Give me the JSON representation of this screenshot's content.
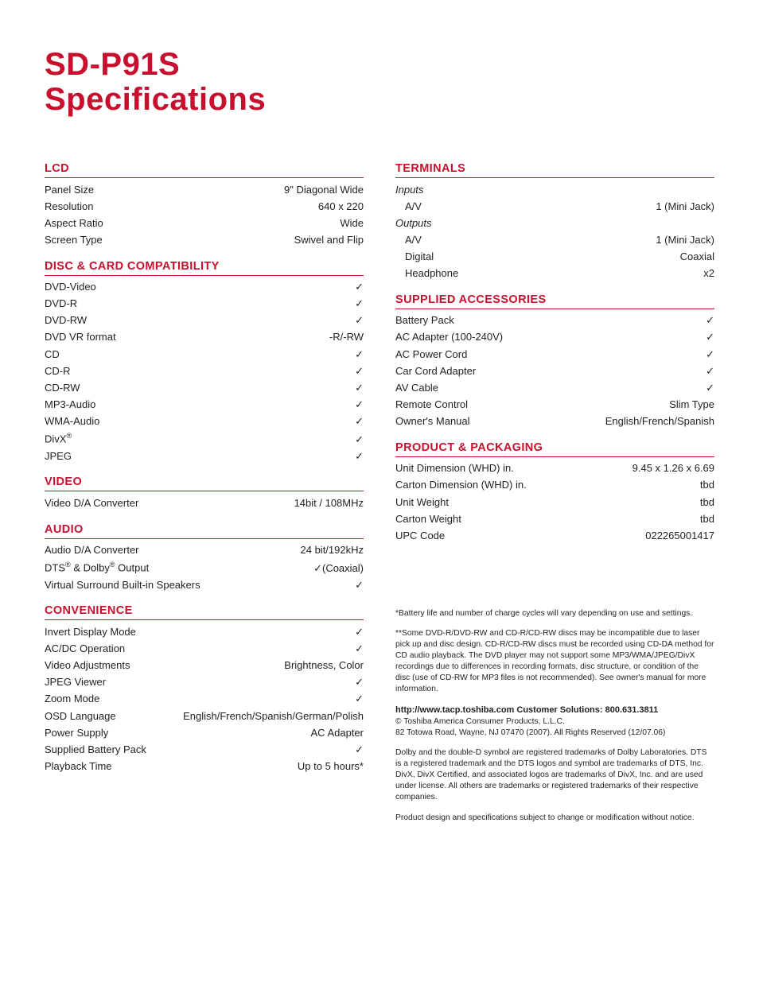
{
  "colors": {
    "accent": "#c8102e",
    "text": "#231f20",
    "background": "#ffffff"
  },
  "typography": {
    "title_fontsize_pt": 30,
    "section_head_fontsize_pt": 11,
    "body_fontsize_pt": 10,
    "footnote_fontsize_pt": 8,
    "title_weight": 700,
    "section_head_weight": 700,
    "font_family": "Futura / Century Gothic"
  },
  "title_line1": "SD-P91S",
  "title_line2": "Specifications",
  "check_glyph": "✓",
  "sections": {
    "lcd": {
      "heading": "LCD",
      "rows": [
        {
          "label": "Panel Size",
          "value": "9\" Diagonal Wide"
        },
        {
          "label": "Resolution",
          "value": "640 x 220"
        },
        {
          "label": "Aspect Ratio",
          "value": "Wide"
        },
        {
          "label": "Screen Type",
          "value": "Swivel and Flip"
        }
      ]
    },
    "disc": {
      "heading": "DISC & CARD COMPATIBILITY",
      "rows": [
        {
          "label": "DVD-Video",
          "value": "✓"
        },
        {
          "label": "DVD-R",
          "value": "✓"
        },
        {
          "label": "DVD-RW",
          "value": "✓"
        },
        {
          "label": "DVD VR format",
          "value": "-R/-RW"
        },
        {
          "label": "CD",
          "value": "✓"
        },
        {
          "label": "CD-R",
          "value": "✓"
        },
        {
          "label": "CD-RW",
          "value": "✓"
        },
        {
          "label": "MP3-Audio",
          "value": "✓"
        },
        {
          "label": "WMA-Audio",
          "value": "✓"
        },
        {
          "label_html": "DivX<sup class='reg'>®</sup>",
          "value": "✓"
        },
        {
          "label": "JPEG",
          "value": "✓"
        }
      ]
    },
    "video": {
      "heading": "VIDEO",
      "rows": [
        {
          "label": "Video D/A Converter",
          "value": "14bit / 108MHz"
        }
      ]
    },
    "audio": {
      "heading": "AUDIO",
      "rows": [
        {
          "label": "Audio D/A Converter",
          "value": "24 bit/192kHz"
        },
        {
          "label_html": "DTS<sup class='reg'>®</sup> &amp; Dolby<sup class='reg'>®</sup> Output",
          "value": "✓(Coaxial)"
        },
        {
          "label": "Virtual Surround Built-in Speakers",
          "value": "✓"
        }
      ]
    },
    "convenience": {
      "heading": "CONVENIENCE",
      "rows": [
        {
          "label": "Invert Display Mode",
          "value": "✓"
        },
        {
          "label": "AC/DC Operation",
          "value": "✓"
        },
        {
          "label": "Video Adjustments",
          "value": "Brightness, Color"
        },
        {
          "label": "JPEG Viewer",
          "value": "✓"
        },
        {
          "label": "Zoom Mode",
          "value": "✓"
        },
        {
          "label": "OSD Language",
          "value": "English/French/Spanish/German/Polish"
        },
        {
          "label": "Power Supply",
          "value": "AC Adapter"
        },
        {
          "label": "Supplied Battery Pack",
          "value": "✓"
        },
        {
          "label": "Playback Time",
          "value": "Up to 5 hours*"
        }
      ]
    },
    "terminals": {
      "heading": "TERMINALS",
      "groups": [
        {
          "subhead": "Inputs",
          "rows": [
            {
              "label": "A/V",
              "value": "1 (Mini Jack)"
            }
          ]
        },
        {
          "subhead": "Outputs",
          "rows": [
            {
              "label": "A/V",
              "value": "1 (Mini Jack)"
            },
            {
              "label": "Digital",
              "value": "Coaxial"
            },
            {
              "label": "Headphone",
              "value": "x2"
            }
          ]
        }
      ]
    },
    "accessories": {
      "heading": "SUPPLIED ACCESSORIES",
      "rows": [
        {
          "label": "Battery Pack",
          "value": "✓"
        },
        {
          "label": "AC Adapter (100-240V)",
          "value": "✓"
        },
        {
          "label": "AC Power Cord",
          "value": "✓"
        },
        {
          "label": "Car Cord Adapter",
          "value": "✓"
        },
        {
          "label": "AV Cable",
          "value": "✓"
        },
        {
          "label": "Remote Control",
          "value": "Slim Type"
        },
        {
          "label": "Owner's Manual",
          "value": "English/French/Spanish"
        }
      ]
    },
    "packaging": {
      "heading": "PRODUCT & PACKAGING",
      "rows": [
        {
          "label": "Unit Dimension (WHD) in.",
          "value": "9.45 x 1.26 x 6.69"
        },
        {
          "label": "Carton Dimension (WHD) in.",
          "value": "tbd"
        },
        {
          "label": "Unit Weight",
          "value": "tbd"
        },
        {
          "label": "Carton Weight",
          "value": "tbd"
        },
        {
          "label": "UPC Code",
          "value": "022265001417"
        }
      ]
    }
  },
  "footnotes": {
    "note1": "*Battery life and number of charge cycles will vary depending on use and settings.",
    "note2": "**Some DVD-R/DVD-RW and CD-R/CD-RW discs may be incompatible due to laser pick up and disc design.  CD-R/CD-RW discs must be recorded using CD-DA method for CD audio playback.  The DVD player may not support some MP3/WMA/JPEG/DivX recordings due to differences in recording formats, disc structure, or condition of the disc (use of CD-RW for MP3 files is not recommended).  See owner's manual for more information.",
    "url_line": "http://www.tacp.toshiba.com   Customer Solutions: 800.631.3811",
    "copyright": " © Toshiba America Consumer Products, L.L.C.",
    "address": "82 Totowa Road, Wayne, NJ 07470  (2007). All Rights Reserved (12/07.06)",
    "trademarks": "Dolby and the double-D symbol are registered trademarks of Dolby Laboratories.  DTS is a registered trademark and the DTS logos and symbol are trademarks of DTS, Inc.  DivX, DivX Certified, and associated logos are trademarks of DivX, Inc. and are used under license. All others are trademarks or registered trademarks of their respective companies.",
    "disclaimer": "Product design and specifications subject to change or modification without notice."
  }
}
